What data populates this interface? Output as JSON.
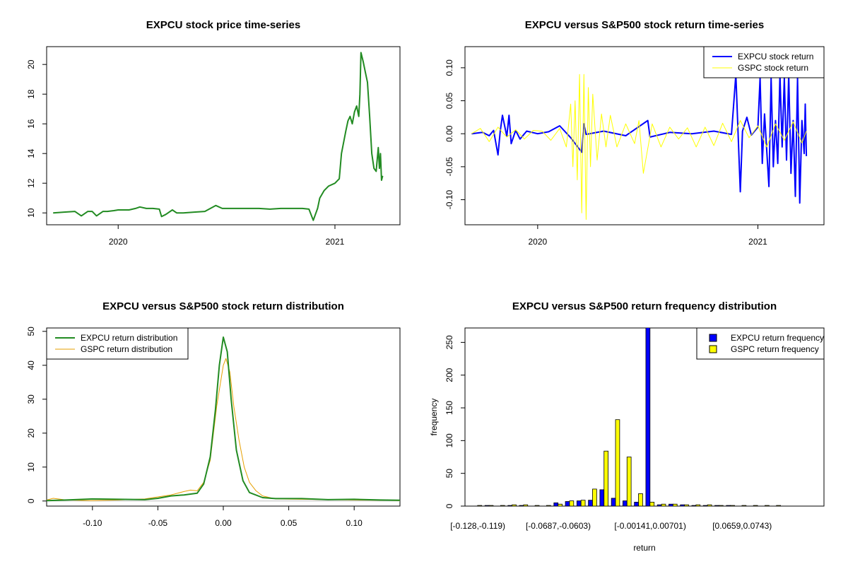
{
  "colors": {
    "expcu_price": "#228B22",
    "expcu_return": "#0000FF",
    "gspc_return": "#FFFF00",
    "expcu_density": "#228B22",
    "gspc_density": "#E69F00",
    "expcu_freq": "#0000FF",
    "gspc_freq": "#FFFF00"
  },
  "chart_data": [
    {
      "type": "line",
      "title": "EXPCU stock price time-series",
      "xlabel": "",
      "ylabel": "",
      "x_ticks": [
        "2020",
        "2021"
      ],
      "x_tick_values": [
        2020.0,
        2021.0
      ],
      "y_ticks": [
        "10",
        "12",
        "14",
        "16",
        "18",
        "20"
      ],
      "xlim": [
        2019.67,
        2021.3
      ],
      "ylim": [
        9.2,
        21.2
      ],
      "series": [
        {
          "x": [
            2019.7,
            2019.75,
            2019.8,
            2019.83,
            2019.86,
            2019.88,
            2019.9,
            2019.93,
            2019.95,
            2019.98,
            2020.0,
            2020.05,
            2020.08,
            2020.1,
            2020.13,
            2020.16,
            2020.19,
            2020.2,
            2020.22,
            2020.25,
            2020.27,
            2020.3,
            2020.35,
            2020.4,
            2020.45,
            2020.48,
            2020.5,
            2020.55,
            2020.6,
            2020.65,
            2020.7,
            2020.75,
            2020.8,
            2020.85,
            2020.88,
            2020.9,
            2020.92,
            2020.93,
            2020.95,
            2020.97,
            2021.0,
            2021.02,
            2021.03,
            2021.05,
            2021.06,
            2021.07,
            2021.08,
            2021.09,
            2021.1,
            2021.11,
            2021.115,
            2021.12,
            2021.13,
            2021.14,
            2021.15,
            2021.16,
            2021.17,
            2021.18,
            2021.19,
            2021.2,
            2021.205,
            2021.21,
            2021.215,
            2021.22
          ],
          "y": [
            10.0,
            10.05,
            10.1,
            9.8,
            10.1,
            10.1,
            9.8,
            10.1,
            10.1,
            10.15,
            10.2,
            10.2,
            10.3,
            10.4,
            10.3,
            10.3,
            10.25,
            9.75,
            9.9,
            10.2,
            10.0,
            10.0,
            10.05,
            10.1,
            10.5,
            10.3,
            10.3,
            10.3,
            10.3,
            10.3,
            10.25,
            10.3,
            10.3,
            10.3,
            10.25,
            9.5,
            10.3,
            11.0,
            11.5,
            11.8,
            12.0,
            12.3,
            14.0,
            15.5,
            16.2,
            16.5,
            16.0,
            16.8,
            17.2,
            16.5,
            18.0,
            20.8,
            20.2,
            19.5,
            18.8,
            16.5,
            14.0,
            13.0,
            12.8,
            14.4,
            13.0,
            14.0,
            12.2,
            12.5
          ]
        }
      ]
    },
    {
      "type": "line",
      "title": "EXPCU versus S&P500 stock return time-series",
      "xlabel": "",
      "ylabel": "",
      "x_ticks": [
        "2020",
        "2021"
      ],
      "x_tick_values": [
        2020.0,
        2021.0
      ],
      "y_ticks": [
        "-0.10",
        "-0.05",
        "0.00",
        "0.05",
        "0.10"
      ],
      "y_tick_values": [
        -0.1,
        -0.05,
        0.0,
        0.05,
        0.1
      ],
      "xlim": [
        2019.67,
        2021.3
      ],
      "ylim": [
        -0.138,
        0.132
      ],
      "legend_position": "top-right",
      "series": [
        {
          "name": "EXPCU stock return",
          "x": [
            2019.7,
            2019.75,
            2019.78,
            2019.8,
            2019.82,
            2019.83,
            2019.84,
            2019.86,
            2019.87,
            2019.88,
            2019.9,
            2019.92,
            2019.95,
            2020.0,
            2020.05,
            2020.1,
            2020.15,
            2020.2,
            2020.21,
            2020.22,
            2020.3,
            2020.4,
            2020.5,
            2020.51,
            2020.6,
            2020.7,
            2020.8,
            2020.88,
            2020.9,
            2020.92,
            2020.93,
            2020.95,
            2020.97,
            2021.0,
            2021.01,
            2021.02,
            2021.03,
            2021.05,
            2021.06,
            2021.07,
            2021.08,
            2021.09,
            2021.1,
            2021.11,
            2021.12,
            2021.13,
            2021.14,
            2021.15,
            2021.16,
            2021.17,
            2021.18,
            2021.19,
            2021.2,
            2021.21,
            2021.215,
            2021.22
          ],
          "y": [
            0.0,
            0.002,
            -0.003,
            0.005,
            -0.032,
            0.004,
            0.028,
            -0.004,
            0.028,
            -0.015,
            0.005,
            -0.008,
            0.004,
            0.0,
            0.003,
            0.012,
            -0.006,
            -0.028,
            0.015,
            -0.001,
            0.004,
            -0.003,
            0.02,
            -0.005,
            0.002,
            0.0,
            0.004,
            -0.001,
            0.09,
            -0.088,
            0.004,
            0.025,
            -0.002,
            0.01,
            0.085,
            -0.045,
            0.03,
            -0.08,
            0.085,
            -0.05,
            0.02,
            -0.045,
            0.09,
            -0.02,
            0.085,
            -0.04,
            0.09,
            -0.06,
            0.02,
            -0.095,
            0.085,
            -0.105,
            0.02,
            -0.03,
            0.045,
            -0.034
          ]
        },
        {
          "name": "GSPC stock return",
          "x": [
            2019.7,
            2019.74,
            2019.78,
            2019.82,
            2019.86,
            2019.9,
            2019.94,
            2019.98,
            2020.02,
            2020.06,
            2020.1,
            2020.13,
            2020.15,
            2020.16,
            2020.17,
            2020.18,
            2020.19,
            2020.2,
            2020.21,
            2020.22,
            2020.23,
            2020.24,
            2020.25,
            2020.27,
            2020.29,
            2020.31,
            2020.33,
            2020.36,
            2020.4,
            2020.44,
            2020.46,
            2020.48,
            2020.52,
            2020.56,
            2020.6,
            2020.64,
            2020.68,
            2020.72,
            2020.76,
            2020.8,
            2020.84,
            2020.88,
            2020.92,
            2020.96,
            2021.0,
            2021.04,
            2021.08,
            2021.12,
            2021.16,
            2021.2,
            2021.22
          ],
          "y": [
            0.0,
            0.008,
            -0.012,
            0.01,
            -0.005,
            0.006,
            -0.008,
            0.005,
            0.004,
            -0.01,
            0.008,
            -0.02,
            0.045,
            -0.05,
            0.05,
            -0.07,
            0.09,
            -0.12,
            0.09,
            -0.13,
            0.07,
            -0.05,
            0.06,
            -0.04,
            0.03,
            -0.02,
            0.028,
            -0.02,
            0.015,
            -0.015,
            0.02,
            -0.06,
            0.015,
            -0.02,
            0.01,
            -0.008,
            0.009,
            -0.02,
            0.01,
            -0.018,
            0.016,
            -0.012,
            0.02,
            -0.006,
            0.012,
            -0.02,
            0.015,
            -0.01,
            0.018,
            -0.014,
            0.004
          ]
        }
      ]
    },
    {
      "type": "line",
      "title": "EXPCU versus S&P500 stock return distribution",
      "xlabel": "",
      "ylabel": "",
      "x_ticks": [
        "-0.10",
        "-0.05",
        "0.00",
        "0.05",
        "0.10"
      ],
      "x_tick_values": [
        -0.1,
        -0.05,
        0.0,
        0.05,
        0.1
      ],
      "y_ticks": [
        "0",
        "10",
        "20",
        "30",
        "40",
        "50"
      ],
      "y_tick_values": [
        0,
        10,
        20,
        30,
        40,
        50
      ],
      "xlim": [
        -0.135,
        0.135
      ],
      "ylim": [
        -1.5,
        51
      ],
      "legend_position": "top-left",
      "series": [
        {
          "name": "EXPCU return distribution",
          "x": [
            -0.135,
            -0.12,
            -0.1,
            -0.08,
            -0.06,
            -0.05,
            -0.04,
            -0.03,
            -0.02,
            -0.015,
            -0.01,
            -0.006,
            -0.003,
            0.0,
            0.003,
            0.006,
            0.01,
            0.015,
            0.02,
            0.03,
            0.04,
            0.06,
            0.08,
            0.1,
            0.12,
            0.135
          ],
          "y": [
            0.1,
            0.3,
            0.6,
            0.5,
            0.4,
            0.8,
            1.5,
            1.8,
            2.3,
            5.0,
            13.0,
            27.0,
            40.0,
            48.3,
            44.0,
            30.0,
            15.0,
            6.0,
            2.5,
            1.0,
            0.7,
            0.7,
            0.4,
            0.5,
            0.3,
            0.2
          ]
        },
        {
          "name": "GSPC return distribution",
          "x": [
            -0.135,
            -0.13,
            -0.12,
            -0.1,
            -0.08,
            -0.06,
            -0.05,
            -0.04,
            -0.03,
            -0.025,
            -0.02,
            -0.015,
            -0.01,
            -0.005,
            0.0,
            0.002,
            0.005,
            0.008,
            0.012,
            0.016,
            0.02,
            0.025,
            0.03,
            0.04,
            0.06,
            0.08,
            0.1,
            0.12,
            0.135
          ],
          "y": [
            0.3,
            0.8,
            0.3,
            0.1,
            0.3,
            0.6,
            1.2,
            1.8,
            2.8,
            3.2,
            3.0,
            5.5,
            12.0,
            28.0,
            40.0,
            42.0,
            38.0,
            28.0,
            18.0,
            10.0,
            5.5,
            3.0,
            1.5,
            0.6,
            0.5,
            0.4,
            0.3,
            0.2,
            0.1
          ]
        }
      ]
    },
    {
      "type": "bar",
      "title": "EXPCU versus S&P500 return frequency distribution",
      "xlabel": "return",
      "ylabel": "frequency",
      "x_tick_labels": [
        "[-0.128,-0.119)",
        "[-0.0687,-0.0603)",
        "[-0.00141,0.00701)",
        "[0.0659,0.0743)"
      ],
      "x_tick_label_indices": [
        0,
        7,
        15,
        23
      ],
      "y_ticks": [
        "0",
        "50",
        "100",
        "150",
        "200",
        "250"
      ],
      "y_tick_values": [
        0,
        50,
        100,
        150,
        200,
        250
      ],
      "ylim": [
        0,
        272
      ],
      "legend_position": "top-right",
      "series": [
        {
          "name": "EXPCU return frequency",
          "values": [
            0,
            1,
            0,
            1,
            1,
            0,
            0,
            5,
            7,
            8,
            9,
            25,
            12,
            8,
            6,
            275,
            2,
            3,
            2,
            1,
            1,
            1,
            1,
            0,
            0,
            0,
            0,
            0,
            0,
            0
          ]
        },
        {
          "name": "GSPC return frequency",
          "values": [
            1,
            1,
            1,
            2,
            2,
            1,
            1,
            3,
            8,
            9,
            26,
            84,
            132,
            75,
            19,
            6,
            3,
            3,
            2,
            2,
            2,
            1,
            1,
            1,
            1,
            1,
            1,
            0,
            0,
            0
          ]
        }
      ]
    }
  ]
}
